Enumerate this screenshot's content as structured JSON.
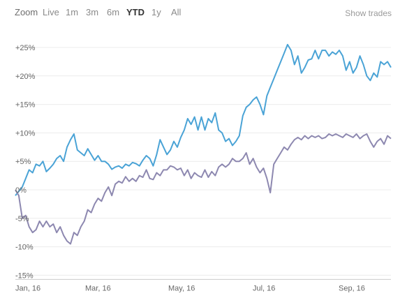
{
  "toolbar": {
    "zoom_label": "Zoom",
    "ranges": [
      "Live",
      "1m",
      "3m",
      "6m",
      "YTD",
      "1y",
      "All"
    ],
    "active_range": "YTD",
    "show_trades_label": "Show trades"
  },
  "chart_data": {
    "type": "line",
    "title": "",
    "xlabel": "",
    "ylabel": "",
    "x_ticks": [
      "Jan, 16",
      "Mar, 16",
      "May, 16",
      "Jul, 16",
      "Sep, 16"
    ],
    "y_ticks": [
      "+25%",
      "+20%",
      "+15%",
      "+10%",
      "+5%",
      "0%",
      "-5%",
      "-10%",
      "-15%"
    ],
    "y_tick_values": [
      25,
      20,
      15,
      10,
      5,
      0,
      -5,
      -10,
      -15
    ],
    "ylim": [
      -15,
      25
    ],
    "grid": true,
    "colors": {
      "series_1": "#4aa3d6",
      "series_2": "#8d88b0",
      "grid": "#ececec",
      "axis": "#cccccc"
    },
    "series": [
      {
        "color": "#4aa3d6",
        "points": [
          [
            0,
            -1
          ],
          [
            1,
            0.5
          ],
          [
            1.5,
            2
          ],
          [
            2,
            3.5
          ],
          [
            2.5,
            3
          ],
          [
            3,
            4.5
          ],
          [
            3.5,
            4.2
          ],
          [
            4,
            5
          ],
          [
            4.5,
            3.2
          ],
          [
            5,
            3.8
          ],
          [
            5.5,
            4.5
          ],
          [
            6,
            5.5
          ],
          [
            6.5,
            6
          ],
          [
            7,
            5
          ],
          [
            7.5,
            7.5
          ],
          [
            8,
            8.8
          ],
          [
            8.5,
            9.8
          ],
          [
            9,
            7
          ],
          [
            9.5,
            6.5
          ],
          [
            10,
            6
          ],
          [
            10.5,
            7.2
          ],
          [
            11,
            6.2
          ],
          [
            11.5,
            5.2
          ],
          [
            12,
            6
          ],
          [
            12.5,
            5
          ],
          [
            13,
            5
          ],
          [
            13.5,
            4.5
          ],
          [
            14,
            3.6
          ],
          [
            14.5,
            4
          ],
          [
            15,
            4.2
          ],
          [
            15.5,
            3.8
          ],
          [
            16,
            4.5
          ],
          [
            16.5,
            4.2
          ],
          [
            17,
            4.8
          ],
          [
            17.5,
            4.6
          ],
          [
            18,
            4.2
          ],
          [
            18.5,
            5.2
          ],
          [
            19,
            6
          ],
          [
            19.5,
            5.5
          ],
          [
            20,
            4.2
          ],
          [
            20.5,
            6.2
          ],
          [
            21,
            8.8
          ],
          [
            21.5,
            7.5
          ],
          [
            22,
            6.2
          ],
          [
            22.5,
            7
          ],
          [
            23,
            8.5
          ],
          [
            23.5,
            7.5
          ],
          [
            24,
            9.2
          ],
          [
            24.5,
            10.5
          ],
          [
            25,
            12.5
          ],
          [
            25.5,
            11.5
          ],
          [
            26,
            12.8
          ],
          [
            26.5,
            10.5
          ],
          [
            27,
            12.8
          ],
          [
            27.5,
            10.5
          ],
          [
            28,
            12.5
          ],
          [
            28.5,
            11.8
          ],
          [
            29,
            13.5
          ],
          [
            29.5,
            10.5
          ],
          [
            30,
            10
          ],
          [
            30.5,
            8.5
          ],
          [
            31,
            9
          ],
          [
            31.5,
            7.8
          ],
          [
            32,
            8.5
          ],
          [
            32.5,
            9.5
          ],
          [
            33,
            13
          ],
          [
            33.5,
            14.5
          ],
          [
            34,
            15
          ],
          [
            34.5,
            15.8
          ],
          [
            35,
            16.3
          ],
          [
            35.5,
            15
          ],
          [
            36,
            13.2
          ],
          [
            36.5,
            16.5
          ],
          [
            37,
            18
          ],
          [
            37.5,
            19.5
          ],
          [
            38,
            21
          ],
          [
            38.5,
            22.5
          ],
          [
            39,
            24
          ],
          [
            39.5,
            25.5
          ],
          [
            40,
            24.5
          ],
          [
            40.5,
            22
          ],
          [
            41,
            23.5
          ],
          [
            41.5,
            20.5
          ],
          [
            42,
            21.5
          ],
          [
            42.5,
            22.8
          ],
          [
            43,
            23
          ],
          [
            43.5,
            24.5
          ],
          [
            44,
            23
          ],
          [
            44.5,
            24.5
          ],
          [
            45,
            24.5
          ],
          [
            45.5,
            23.5
          ],
          [
            46,
            24.2
          ],
          [
            46.5,
            23.8
          ],
          [
            47,
            24.5
          ],
          [
            47.5,
            23.5
          ],
          [
            48,
            21
          ],
          [
            48.5,
            22.5
          ],
          [
            49,
            20.5
          ],
          [
            49.5,
            21.5
          ],
          [
            50,
            23.5
          ],
          [
            50.5,
            22
          ],
          [
            51,
            20
          ],
          [
            51.5,
            19.2
          ],
          [
            52,
            20.5
          ],
          [
            52.5,
            19.8
          ],
          [
            53,
            22.5
          ],
          [
            53.5,
            22
          ],
          [
            54,
            22.5
          ],
          [
            54.5,
            21.5
          ]
        ]
      },
      {
        "color": "#8d88b0",
        "points": [
          [
            0,
            0
          ],
          [
            0.5,
            -1
          ],
          [
            1,
            -5
          ],
          [
            1.5,
            -4.5
          ],
          [
            2,
            -6.5
          ],
          [
            2.5,
            -7.5
          ],
          [
            3,
            -7
          ],
          [
            3.5,
            -5.5
          ],
          [
            4,
            -6.5
          ],
          [
            4.5,
            -5.5
          ],
          [
            5,
            -6.5
          ],
          [
            5.5,
            -6
          ],
          [
            6,
            -7.5
          ],
          [
            6.5,
            -6.5
          ],
          [
            7,
            -8
          ],
          [
            7.5,
            -9
          ],
          [
            8,
            -9.5
          ],
          [
            8.5,
            -7.5
          ],
          [
            9,
            -8
          ],
          [
            9.5,
            -6.5
          ],
          [
            10,
            -5.5
          ],
          [
            10.5,
            -3.5
          ],
          [
            11,
            -4
          ],
          [
            11.5,
            -2.5
          ],
          [
            12,
            -1.5
          ],
          [
            12.5,
            -2
          ],
          [
            13,
            -0.5
          ],
          [
            13.5,
            0.5
          ],
          [
            14,
            -1
          ],
          [
            14.5,
            1
          ],
          [
            15,
            1.5
          ],
          [
            15.5,
            1.2
          ],
          [
            16,
            2.3
          ],
          [
            16.5,
            1.5
          ],
          [
            17,
            2
          ],
          [
            17.5,
            1.5
          ],
          [
            18,
            2.5
          ],
          [
            18.5,
            2.2
          ],
          [
            19,
            3.5
          ],
          [
            19.5,
            2
          ],
          [
            20,
            1.8
          ],
          [
            20.5,
            3
          ],
          [
            21,
            2.5
          ],
          [
            21.5,
            3.5
          ],
          [
            22,
            3.5
          ],
          [
            22.5,
            4.2
          ],
          [
            23,
            4
          ],
          [
            23.5,
            3.5
          ],
          [
            24,
            3.8
          ],
          [
            24.5,
            2.5
          ],
          [
            25,
            3.5
          ],
          [
            25.5,
            2
          ],
          [
            26,
            3
          ],
          [
            26.5,
            2.5
          ],
          [
            27,
            2.2
          ],
          [
            27.5,
            3.5
          ],
          [
            28,
            2.2
          ],
          [
            28.5,
            3.2
          ],
          [
            29,
            2.5
          ],
          [
            29.5,
            4
          ],
          [
            30,
            4.5
          ],
          [
            30.5,
            4
          ],
          [
            31,
            4.5
          ],
          [
            31.5,
            5.5
          ],
          [
            32,
            5
          ],
          [
            32.5,
            5
          ],
          [
            33,
            5.5
          ],
          [
            33.5,
            6.5
          ],
          [
            34,
            4.5
          ],
          [
            34.5,
            5.5
          ],
          [
            35,
            4
          ],
          [
            35.5,
            3
          ],
          [
            36,
            3.8
          ],
          [
            36.5,
            2
          ],
          [
            37,
            -0.5
          ],
          [
            37.5,
            4.5
          ],
          [
            38,
            5.5
          ],
          [
            38.5,
            6.5
          ],
          [
            39,
            7.5
          ],
          [
            39.5,
            7
          ],
          [
            40,
            8
          ],
          [
            40.5,
            8.8
          ],
          [
            41,
            9.2
          ],
          [
            41.5,
            8.8
          ],
          [
            42,
            9.5
          ],
          [
            42.5,
            9
          ],
          [
            43,
            9.5
          ],
          [
            43.5,
            9.2
          ],
          [
            44,
            9.5
          ],
          [
            44.5,
            9
          ],
          [
            45,
            9.2
          ],
          [
            45.5,
            9.8
          ],
          [
            46,
            9.5
          ],
          [
            46.5,
            9.8
          ],
          [
            47,
            9.5
          ],
          [
            47.5,
            9.2
          ],
          [
            48,
            9.8
          ],
          [
            48.5,
            9.5
          ],
          [
            49,
            9.2
          ],
          [
            49.5,
            9.8
          ],
          [
            50,
            9
          ],
          [
            50.5,
            9.5
          ],
          [
            51,
            9.8
          ],
          [
            51.5,
            8.5
          ],
          [
            52,
            7.5
          ],
          [
            52.5,
            8.5
          ],
          [
            53,
            9
          ],
          [
            53.5,
            8
          ],
          [
            54,
            9.5
          ],
          [
            54.5,
            9
          ]
        ]
      }
    ]
  }
}
